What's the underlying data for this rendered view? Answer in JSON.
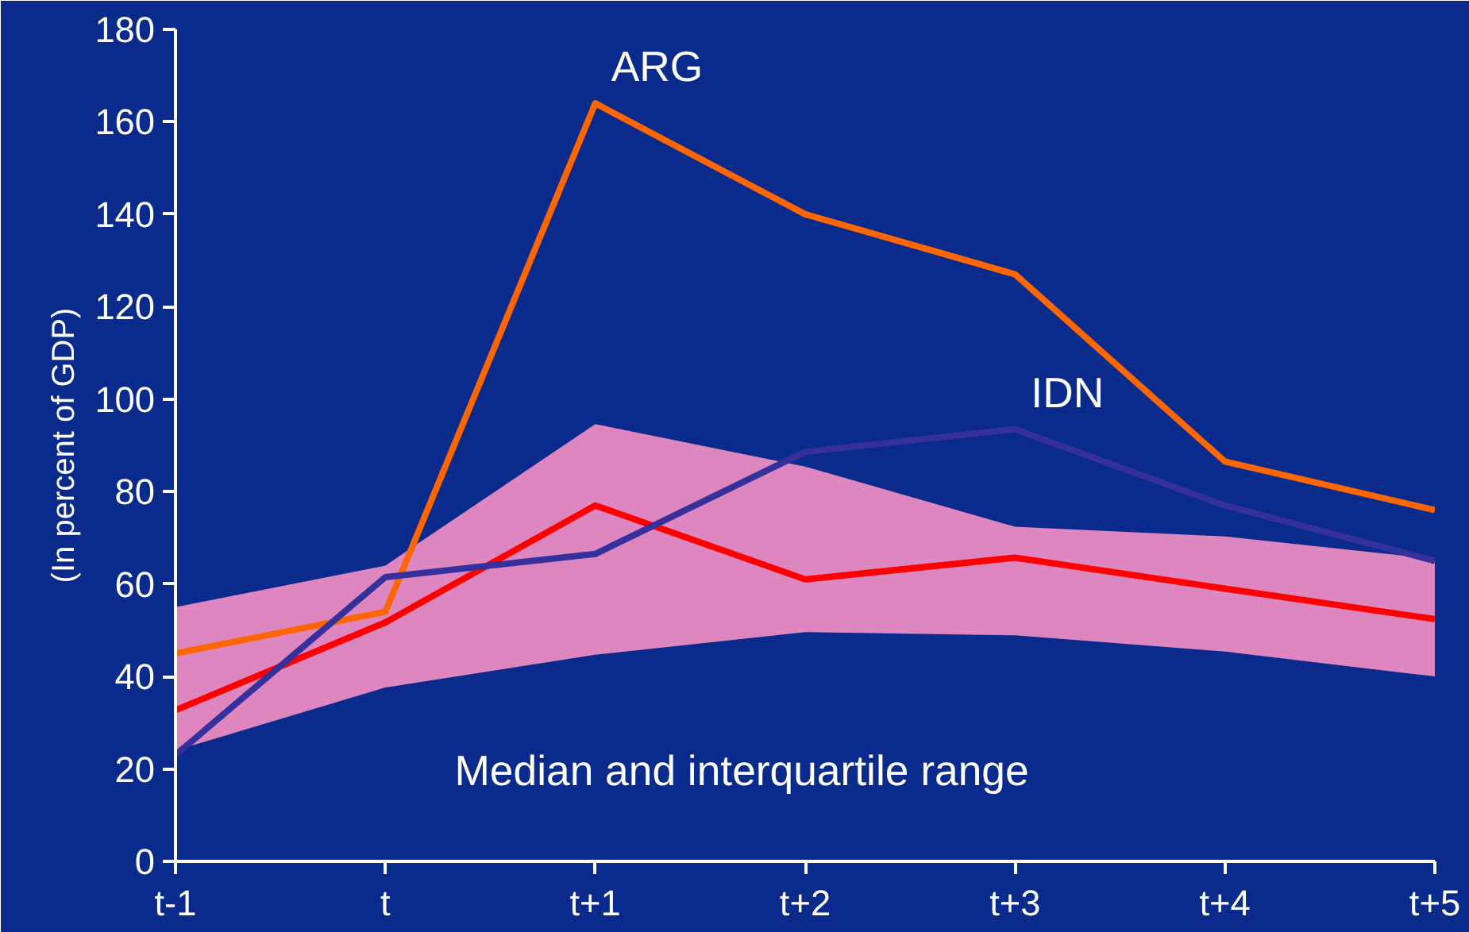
{
  "chart_data": {
    "type": "line",
    "ylabel": "(In percent of GDP)",
    "categories": [
      "t-1",
      "t",
      "t+1",
      "t+2",
      "t+3",
      "t+4",
      "t+5"
    ],
    "ylim": [
      0,
      180
    ],
    "yticks": [
      0,
      20,
      40,
      60,
      80,
      100,
      120,
      140,
      160,
      180
    ],
    "annotations": [
      "Median and interquartile range"
    ],
    "grid": false,
    "legend": false,
    "marker": "none",
    "line_style": "solid",
    "series": [
      {
        "color": "#ff0000",
        "values": [
          32.7,
          51.7,
          77,
          61,
          65.7,
          59,
          52.4
        ],
        "lower": [
          24,
          37.6,
          44.7,
          49.6,
          48.9,
          45.4,
          40
        ],
        "upper": [
          55,
          64,
          94.6,
          85.4,
          72.4,
          70.3,
          65.4
        ]
      },
      {
        "name": "ARG",
        "color": "#ff6600",
        "values": [
          45,
          54,
          164,
          140,
          127,
          86.5,
          76
        ]
      },
      {
        "name": "IDN",
        "color": "#35309c",
        "values": [
          23,
          61.5,
          66.5,
          88.6,
          93.5,
          77,
          65
        ]
      }
    ]
  }
}
